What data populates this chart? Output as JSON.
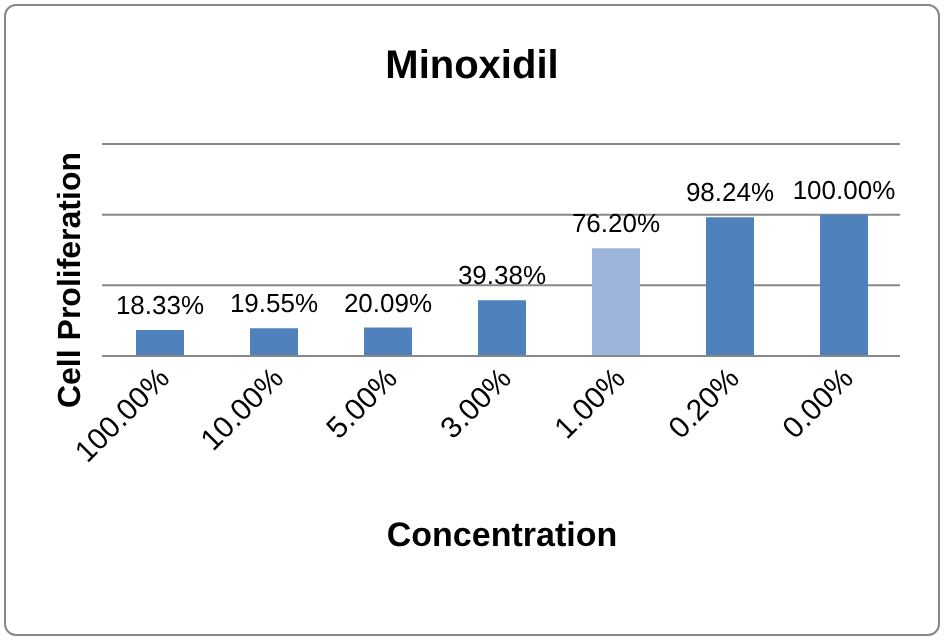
{
  "chart_data": {
    "type": "bar",
    "title": "Minoxidil",
    "xlabel": "Concentration",
    "ylabel": "Cell Proliferation",
    "categories": [
      "100.00%",
      "10.00%",
      "5.00%",
      "3.00%",
      "1.00%",
      "0.20%",
      "0.00%"
    ],
    "values": [
      18.33,
      19.55,
      20.09,
      39.38,
      76.2,
      98.24,
      100
    ],
    "value_labels": [
      "18.33%",
      "19.55%",
      "20.09%",
      "39.38%",
      "76.20%",
      "98.24%",
      "100.00%"
    ],
    "colors": [
      "#4f81bd",
      "#4f81bd",
      "#4f81bd",
      "#4f81bd",
      "#9db5dc",
      "#4f81bd",
      "#4f81bd"
    ],
    "ylim": [
      0,
      150
    ],
    "yticks": [
      {
        "value": 0,
        "label": null
      },
      {
        "value": 50,
        "label": null
      },
      {
        "value": 100,
        "label": null
      },
      {
        "value": 150,
        "label": null
      }
    ],
    "grid": "y",
    "tick_labels": "x",
    "legend": false
  }
}
